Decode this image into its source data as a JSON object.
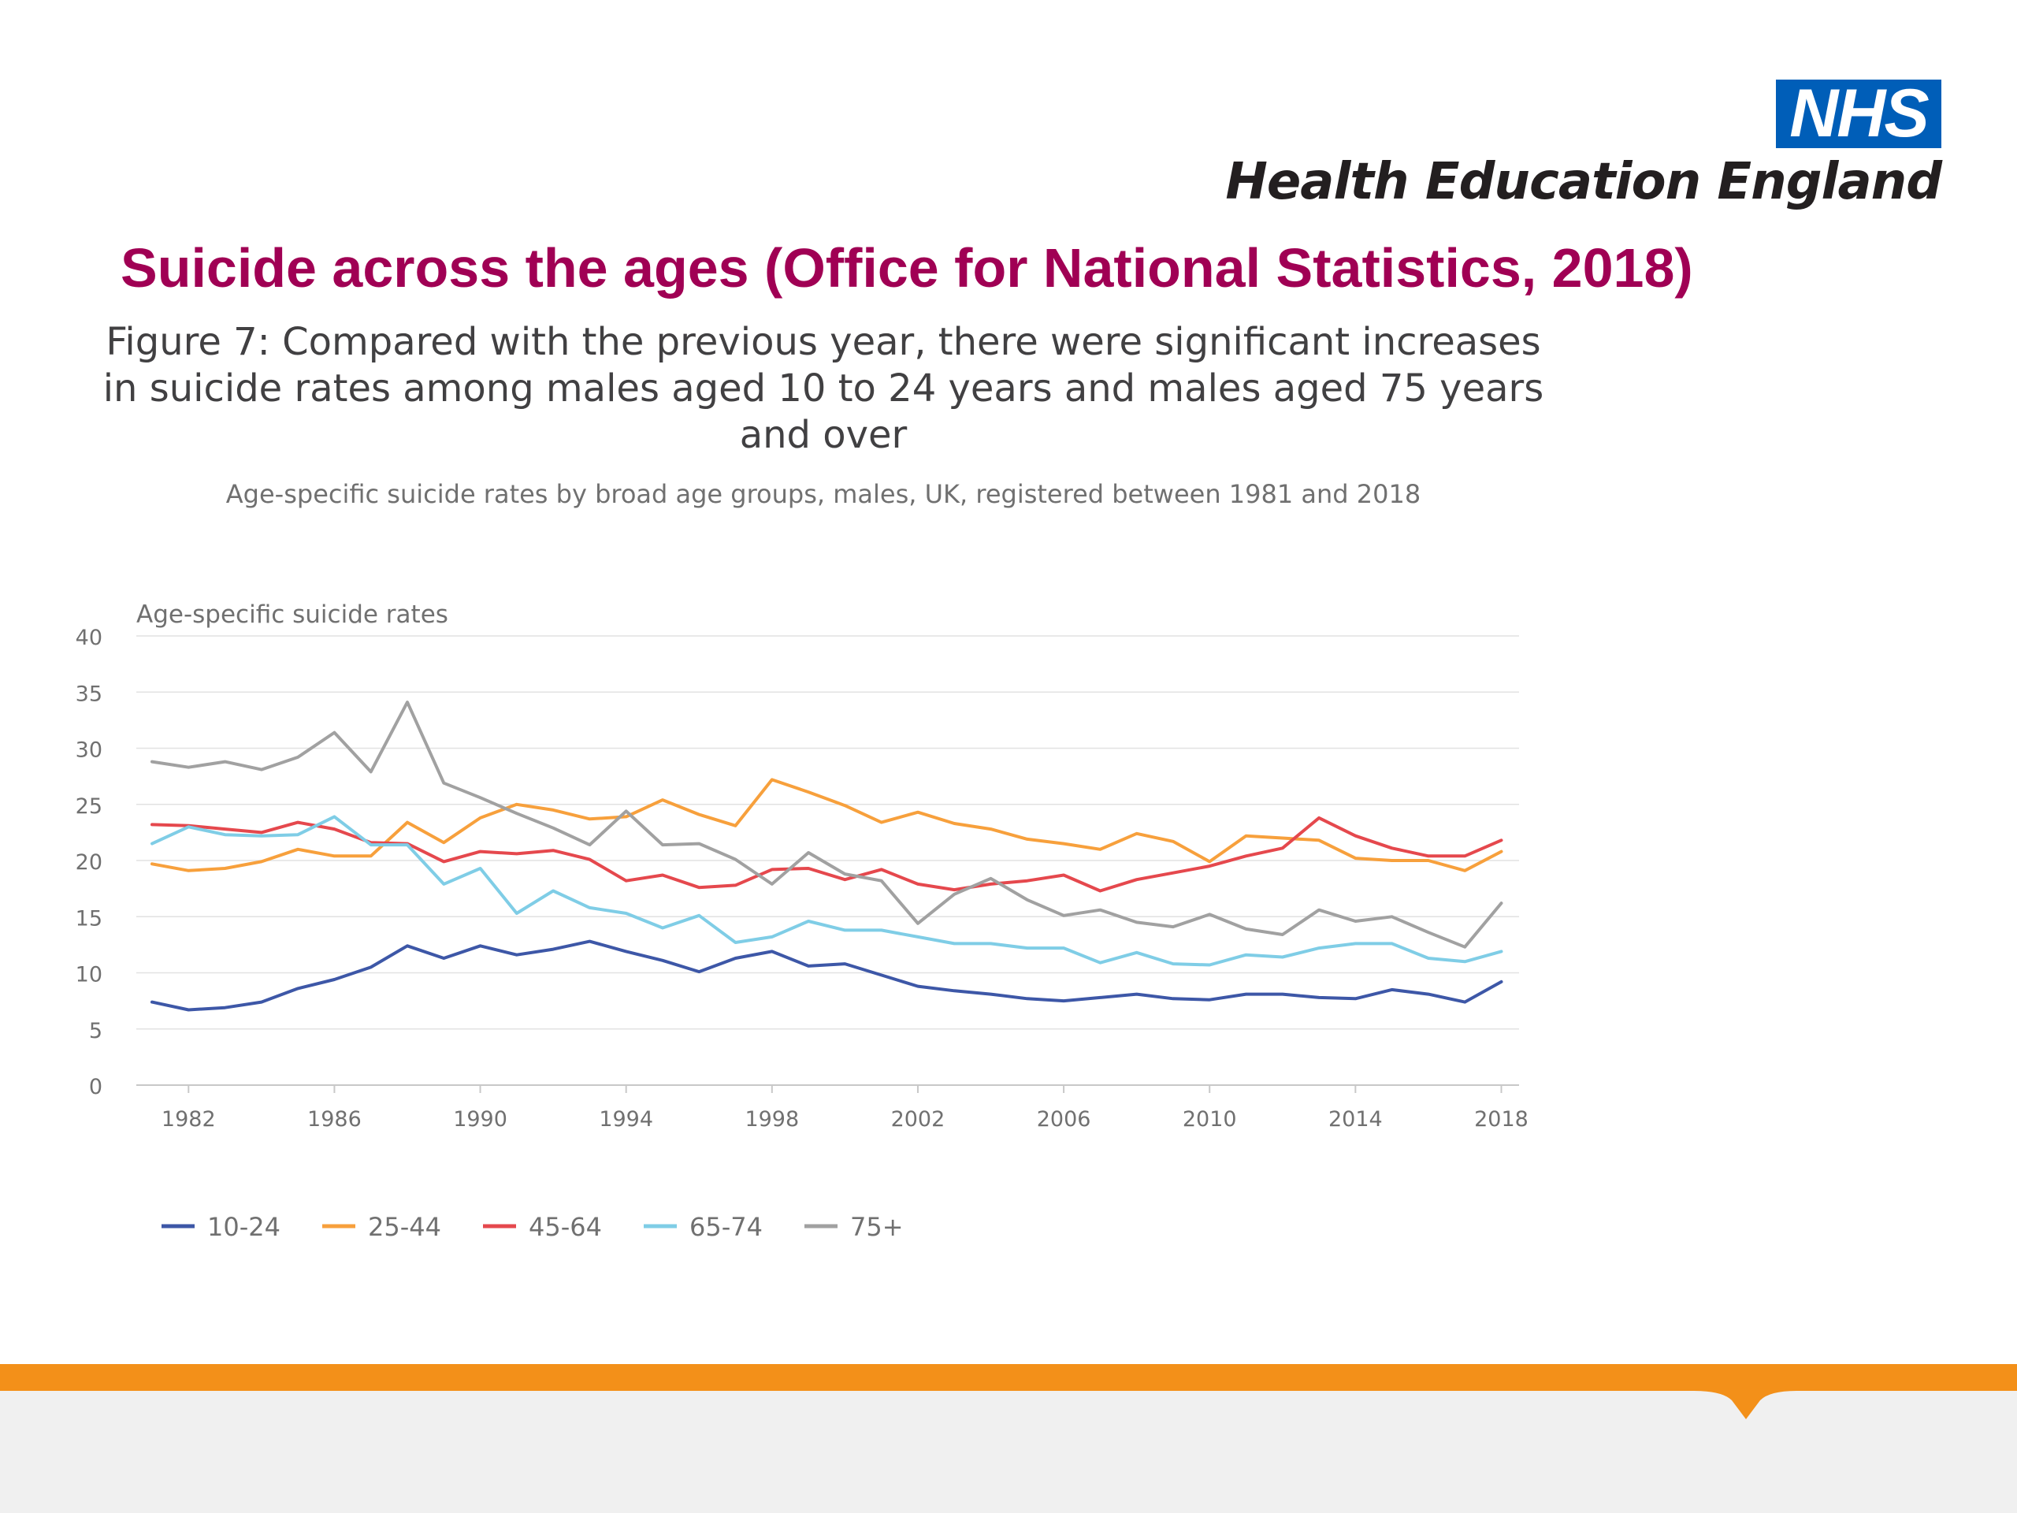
{
  "header": {
    "logo_text": "NHS",
    "org_name": "Health Education England",
    "logo_color": "#005eb8"
  },
  "slide": {
    "title": "Suicide across the ages (Office for National Statistics, 2018)",
    "title_color": "#a00054"
  },
  "chart_data": {
    "type": "line",
    "title": "Figure 7: Compared with the previous year, there were significant increases in suicide rates among males aged 10 to 24 years and males aged 75 years and over",
    "subtitle": "Age-specific suicide rates by broad age groups, males, UK, registered between 1981 and 2018",
    "ylabel": "Age-specific suicide rates",
    "xlabel": "",
    "ylim": [
      0,
      40
    ],
    "yticks": [
      "0",
      "5",
      "10",
      "15",
      "20",
      "25",
      "30",
      "35",
      "40"
    ],
    "xticks": [
      "1982",
      "1986",
      "1990",
      "1994",
      "1998",
      "2002",
      "2006",
      "2010",
      "2014",
      "2018"
    ],
    "grid": true,
    "legend_position": "bottom-left",
    "x": [
      1981,
      1982,
      1983,
      1984,
      1985,
      1986,
      1987,
      1988,
      1989,
      1990,
      1991,
      1992,
      1993,
      1994,
      1995,
      1996,
      1997,
      1998,
      1999,
      2000,
      2001,
      2002,
      2003,
      2004,
      2005,
      2006,
      2007,
      2008,
      2009,
      2010,
      2011,
      2012,
      2013,
      2014,
      2015,
      2016,
      2017,
      2018
    ],
    "series": [
      {
        "name": "10-24",
        "color": "#3d57a7",
        "values": [
          7.4,
          6.7,
          6.9,
          7.4,
          8.6,
          9.4,
          10.5,
          12.4,
          11.3,
          12.4,
          11.6,
          12.1,
          12.8,
          11.9,
          11.1,
          10.1,
          11.3,
          11.9,
          10.6,
          10.8,
          9.8,
          8.8,
          8.4,
          8.1,
          7.7,
          7.5,
          7.8,
          8.1,
          7.7,
          7.6,
          8.1,
          8.1,
          7.8,
          7.7,
          8.5,
          8.1,
          7.4,
          9.2
        ]
      },
      {
        "name": "25-44",
        "color": "#f7a03c",
        "values": [
          19.7,
          19.1,
          19.3,
          19.9,
          21.0,
          20.4,
          20.4,
          23.4,
          21.6,
          23.8,
          25.0,
          24.5,
          23.7,
          23.9,
          25.4,
          24.1,
          23.1,
          27.2,
          26.1,
          24.9,
          23.4,
          24.3,
          23.3,
          22.8,
          21.9,
          21.5,
          21.0,
          22.4,
          21.7,
          19.9,
          22.2,
          22.0,
          21.8,
          20.2,
          20.0,
          20.0,
          19.1,
          20.8
        ]
      },
      {
        "name": "45-64",
        "color": "#e5484d",
        "values": [
          23.2,
          23.1,
          22.8,
          22.5,
          23.4,
          22.8,
          21.6,
          21.5,
          19.9,
          20.8,
          20.6,
          20.9,
          20.1,
          18.2,
          18.7,
          17.6,
          17.8,
          19.2,
          19.3,
          18.3,
          19.2,
          17.9,
          17.4,
          17.9,
          18.2,
          18.7,
          17.3,
          18.3,
          18.9,
          19.5,
          20.4,
          21.1,
          23.8,
          22.2,
          21.1,
          20.4,
          20.4,
          21.8
        ]
      },
      {
        "name": "65-74",
        "color": "#7fcde6",
        "values": [
          21.5,
          23.0,
          22.3,
          22.2,
          22.3,
          23.9,
          21.4,
          21.4,
          17.9,
          19.3,
          15.3,
          17.3,
          15.8,
          15.3,
          14.0,
          15.1,
          12.7,
          13.2,
          14.6,
          13.8,
          13.8,
          13.2,
          12.6,
          12.6,
          12.2,
          12.2,
          10.9,
          11.8,
          10.8,
          10.7,
          11.6,
          11.4,
          12.2,
          12.6,
          12.6,
          11.3,
          11.0,
          11.9
        ]
      },
      {
        "name": "75+",
        "color": "#a1a1a1",
        "values": [
          28.8,
          28.3,
          28.8,
          28.1,
          29.2,
          31.4,
          27.9,
          34.1,
          26.9,
          25.6,
          24.2,
          22.9,
          21.4,
          24.4,
          21.4,
          21.5,
          20.1,
          17.9,
          20.7,
          18.8,
          18.2,
          14.4,
          17.0,
          18.4,
          16.5,
          15.1,
          15.6,
          14.5,
          14.1,
          15.2,
          13.9,
          13.4,
          15.6,
          14.6,
          15.0,
          13.6,
          12.3,
          16.2
        ]
      }
    ]
  }
}
